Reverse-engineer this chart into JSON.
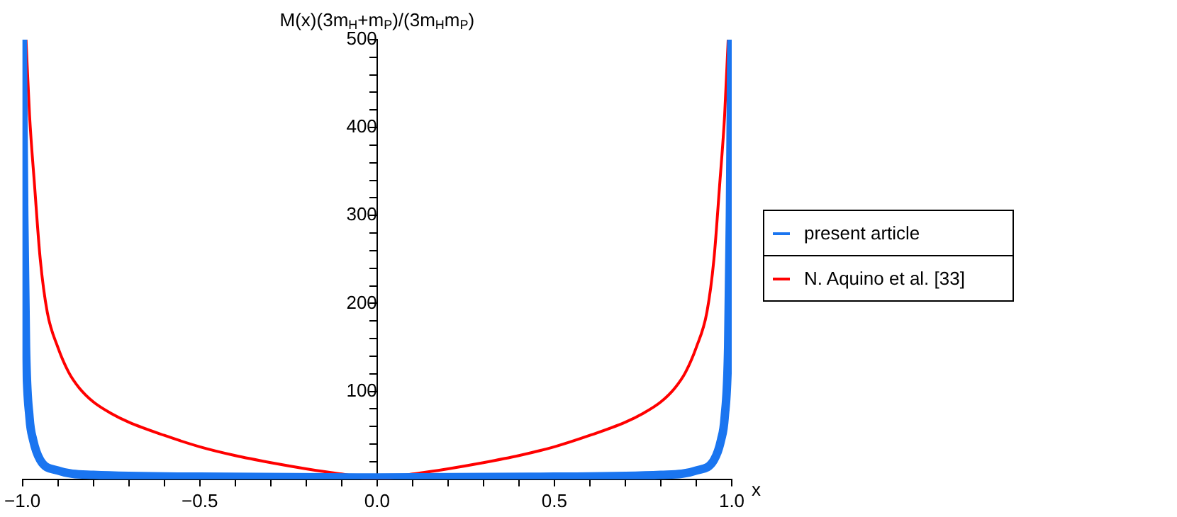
{
  "chart_data": {
    "type": "line",
    "xlabel": "x",
    "ylabel": "M(x)(3m$_{H}$+m$_{P}$)/(3m$_{H}$m$_{P}$)",
    "xlim": [
      -1.0,
      1.0
    ],
    "ylim": [
      0,
      500
    ],
    "xticks": [
      {
        "value": -1.0,
        "label": "−1.0"
      },
      {
        "value": -0.9,
        "label": null
      },
      {
        "value": -0.8,
        "label": null
      },
      {
        "value": -0.7,
        "label": null
      },
      {
        "value": -0.6,
        "label": null
      },
      {
        "value": -0.5,
        "label": "−0.5"
      },
      {
        "value": -0.4,
        "label": null
      },
      {
        "value": -0.3,
        "label": null
      },
      {
        "value": -0.2,
        "label": null
      },
      {
        "value": -0.1,
        "label": null
      },
      {
        "value": 0,
        "label": "0.0"
      },
      {
        "value": 0.1,
        "label": null
      },
      {
        "value": 0.2,
        "label": null
      },
      {
        "value": 0.3,
        "label": null
      },
      {
        "value": 0.4,
        "label": null
      },
      {
        "value": 0.5,
        "label": "0.5"
      },
      {
        "value": 0.6,
        "label": null
      },
      {
        "value": 0.7,
        "label": null
      },
      {
        "value": 0.8,
        "label": null
      },
      {
        "value": 0.9,
        "label": null
      },
      {
        "value": 1.0,
        "label": "1.0"
      }
    ],
    "yticks": [
      {
        "value": 20,
        "label": null
      },
      {
        "value": 40,
        "label": null
      },
      {
        "value": 60,
        "label": null
      },
      {
        "value": 80,
        "label": null
      },
      100,
      {
        "value": 120,
        "label": null
      },
      {
        "value": 140,
        "label": null
      },
      {
        "value": 160,
        "label": null
      },
      {
        "value": 180,
        "label": null
      },
      200,
      {
        "value": 220,
        "label": null
      },
      {
        "value": 240,
        "label": null
      },
      {
        "value": 260,
        "label": null
      },
      {
        "value": 280,
        "label": null
      },
      300,
      {
        "value": 320,
        "label": null
      },
      {
        "value": 340,
        "label": null
      },
      {
        "value": 360,
        "label": null
      },
      {
        "value": 380,
        "label": null
      },
      400,
      {
        "value": 420,
        "label": null
      },
      {
        "value": 440,
        "label": null
      },
      {
        "value": 460,
        "label": null
      },
      {
        "value": 480,
        "label": null
      },
      500
    ],
    "legend": "right",
    "grid": false,
    "marker": "none",
    "series": [
      {
        "name": "present article",
        "color": "#1a75f0",
        "x": [
          -0.999,
          -0.995,
          -0.99,
          -0.98,
          -0.97,
          -0.95,
          -0.9,
          -0.8,
          -0.5,
          0,
          0.5,
          0.8,
          0.9,
          0.95,
          0.97,
          0.98,
          0.99,
          0.995,
          0.999
        ],
        "values": [
          500,
          300,
          150,
          70,
          45,
          22,
          10,
          5,
          3,
          2,
          3,
          5,
          10,
          22,
          45,
          70,
          150,
          300,
          500
        ]
      },
      {
        "name": "N. Aquino et al. [33]",
        "color": "#ff0000",
        "x": [
          -0.99,
          -0.98,
          -0.966,
          -0.95,
          -0.93,
          -0.9,
          -0.87,
          -0.84,
          -0.8,
          -0.75,
          -0.7,
          -0.6,
          -0.5,
          -0.4,
          -0.3,
          -0.2,
          -0.1,
          0,
          0.1,
          0.2,
          0.3,
          0.4,
          0.5,
          0.6,
          0.7,
          0.75,
          0.8,
          0.84,
          0.87,
          0.9,
          0.93,
          0.95,
          0.966,
          0.98,
          0.99
        ],
        "values": [
          500,
          414,
          335,
          251,
          190,
          150,
          122,
          104,
          88,
          75,
          65,
          50,
          37,
          27,
          19,
          12,
          6,
          0,
          6,
          12,
          19,
          27,
          37,
          50,
          65,
          75,
          88,
          104,
          122,
          150,
          190,
          251,
          335,
          414,
          500
        ]
      }
    ]
  }
}
